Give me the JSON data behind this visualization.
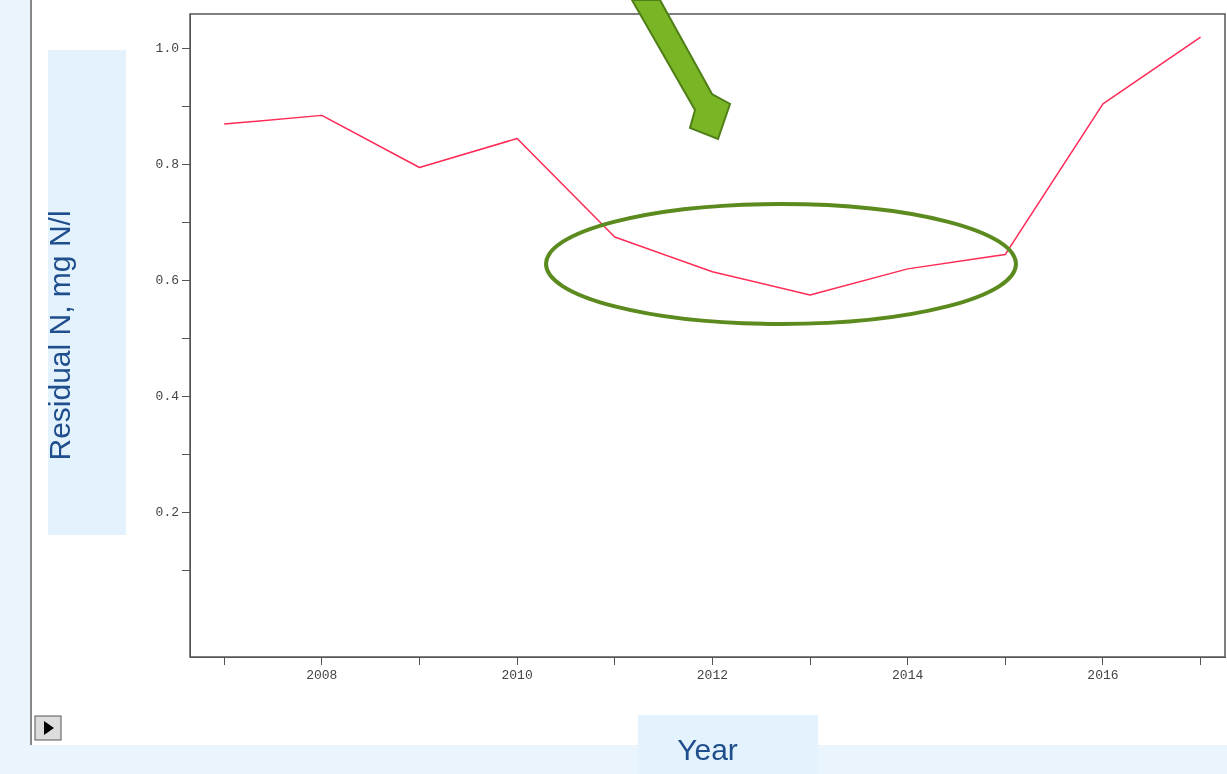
{
  "chart_data": {
    "type": "line",
    "xlabel": "Year",
    "ylabel": "Residual N, mg N/l",
    "x": [
      2007,
      2008,
      2009,
      2010,
      2011,
      2012,
      2013,
      2014,
      2015,
      2016,
      2017
    ],
    "series": [
      {
        "color": "#ff2a55",
        "values": [
          0.87,
          0.885,
          0.795,
          0.845,
          0.675,
          0.615,
          0.575,
          0.62,
          0.645,
          0.905,
          1.02
        ]
      }
    ],
    "xlim": [
      2006.65,
      2017.25
    ],
    "xticks": [
      {
        "value": 2007,
        "label": null
      },
      2008,
      {
        "value": 2009,
        "label": null
      },
      2010,
      {
        "value": 2011,
        "label": null
      },
      2012,
      {
        "value": 2013,
        "label": null
      },
      2014,
      {
        "value": 2015,
        "label": null
      },
      2016,
      {
        "value": 2017,
        "label": null
      }
    ],
    "ylim": [
      -0.05,
      1.06
    ],
    "yticks": [
      {
        "value": 0.1,
        "label": null
      },
      {
        "value": 0.2,
        "label": "0.2"
      },
      {
        "value": 0.3,
        "label": null
      },
      {
        "value": 0.4,
        "label": "0.4"
      },
      {
        "value": 0.5,
        "label": null
      },
      {
        "value": 0.6,
        "label": "0.6"
      },
      {
        "value": 0.7,
        "label": null
      },
      {
        "value": 0.8,
        "label": "0.8"
      },
      {
        "value": 0.9,
        "label": null
      },
      {
        "value": 1.0,
        "label": "1.0"
      }
    ],
    "grid": false,
    "legend": false,
    "marker": "none",
    "line_style": "solid"
  }
}
